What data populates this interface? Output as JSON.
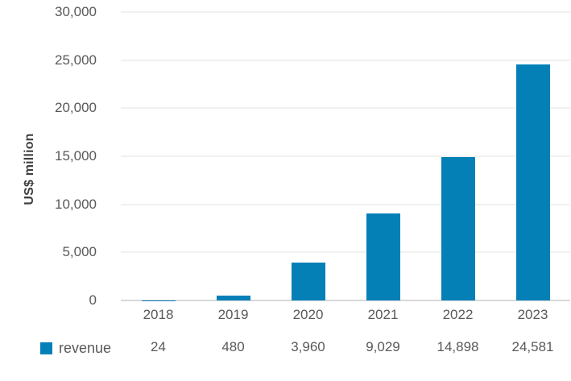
{
  "chart_data": {
    "type": "bar",
    "categories": [
      "2018",
      "2019",
      "2020",
      "2021",
      "2022",
      "2023"
    ],
    "series": [
      {
        "name": "revenue",
        "values": [
          24,
          480,
          3960,
          9029,
          14898,
          24581
        ]
      }
    ],
    "value_labels": [
      "24",
      "480",
      "3,960",
      "9,029",
      "14,898",
      "24,581"
    ],
    "title": "",
    "xlabel": "",
    "ylabel": "US$ million",
    "ylim": [
      0,
      30000
    ],
    "ytick_interval": 5000,
    "ytick_labels": [
      "0",
      "5,000",
      "10,000",
      "15,000",
      "20,000",
      "25,000",
      "30,000"
    ],
    "grid": true,
    "legend_position": "bottom-left"
  },
  "colors": {
    "bar": "#0480b7",
    "tick_text": "#595959",
    "gridline": "#f1f1f1",
    "axis_line": "#d9d9d9",
    "y_title_text": "#404040"
  }
}
